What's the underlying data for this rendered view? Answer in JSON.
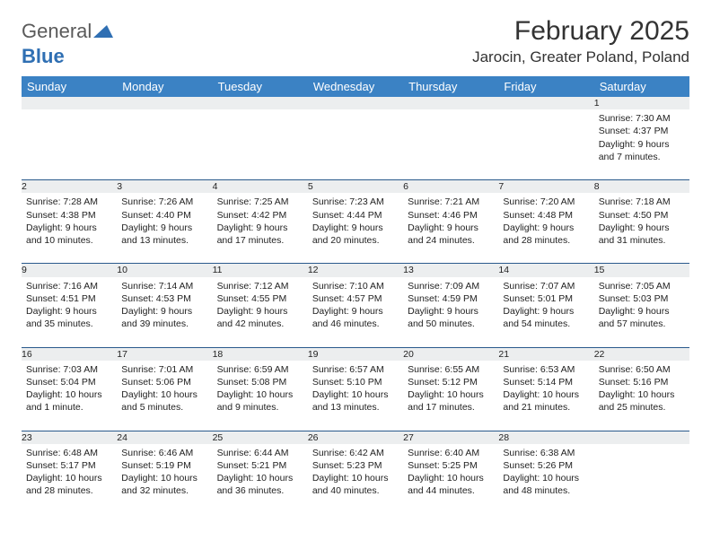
{
  "brand": {
    "name_a": "General",
    "name_b": "Blue"
  },
  "title": "February 2025",
  "location": "Jarocin, Greater Poland, Poland",
  "colors": {
    "header_bg": "#3b82c4",
    "header_text": "#ffffff",
    "rule": "#2a5a8c",
    "daynum_bg": "#eceeef",
    "brand_gray": "#5a5a5a",
    "brand_blue": "#2f6fb3"
  },
  "weekdays": [
    "Sunday",
    "Monday",
    "Tuesday",
    "Wednesday",
    "Thursday",
    "Friday",
    "Saturday"
  ],
  "weeks": [
    [
      null,
      null,
      null,
      null,
      null,
      null,
      {
        "n": "1",
        "sunrise": "7:30 AM",
        "sunset": "4:37 PM",
        "daylight": "9 hours and 7 minutes."
      }
    ],
    [
      {
        "n": "2",
        "sunrise": "7:28 AM",
        "sunset": "4:38 PM",
        "daylight": "9 hours and 10 minutes."
      },
      {
        "n": "3",
        "sunrise": "7:26 AM",
        "sunset": "4:40 PM",
        "daylight": "9 hours and 13 minutes."
      },
      {
        "n": "4",
        "sunrise": "7:25 AM",
        "sunset": "4:42 PM",
        "daylight": "9 hours and 17 minutes."
      },
      {
        "n": "5",
        "sunrise": "7:23 AM",
        "sunset": "4:44 PM",
        "daylight": "9 hours and 20 minutes."
      },
      {
        "n": "6",
        "sunrise": "7:21 AM",
        "sunset": "4:46 PM",
        "daylight": "9 hours and 24 minutes."
      },
      {
        "n": "7",
        "sunrise": "7:20 AM",
        "sunset": "4:48 PM",
        "daylight": "9 hours and 28 minutes."
      },
      {
        "n": "8",
        "sunrise": "7:18 AM",
        "sunset": "4:50 PM",
        "daylight": "9 hours and 31 minutes."
      }
    ],
    [
      {
        "n": "9",
        "sunrise": "7:16 AM",
        "sunset": "4:51 PM",
        "daylight": "9 hours and 35 minutes."
      },
      {
        "n": "10",
        "sunrise": "7:14 AM",
        "sunset": "4:53 PM",
        "daylight": "9 hours and 39 minutes."
      },
      {
        "n": "11",
        "sunrise": "7:12 AM",
        "sunset": "4:55 PM",
        "daylight": "9 hours and 42 minutes."
      },
      {
        "n": "12",
        "sunrise": "7:10 AM",
        "sunset": "4:57 PM",
        "daylight": "9 hours and 46 minutes."
      },
      {
        "n": "13",
        "sunrise": "7:09 AM",
        "sunset": "4:59 PM",
        "daylight": "9 hours and 50 minutes."
      },
      {
        "n": "14",
        "sunrise": "7:07 AM",
        "sunset": "5:01 PM",
        "daylight": "9 hours and 54 minutes."
      },
      {
        "n": "15",
        "sunrise": "7:05 AM",
        "sunset": "5:03 PM",
        "daylight": "9 hours and 57 minutes."
      }
    ],
    [
      {
        "n": "16",
        "sunrise": "7:03 AM",
        "sunset": "5:04 PM",
        "daylight": "10 hours and 1 minute."
      },
      {
        "n": "17",
        "sunrise": "7:01 AM",
        "sunset": "5:06 PM",
        "daylight": "10 hours and 5 minutes."
      },
      {
        "n": "18",
        "sunrise": "6:59 AM",
        "sunset": "5:08 PM",
        "daylight": "10 hours and 9 minutes."
      },
      {
        "n": "19",
        "sunrise": "6:57 AM",
        "sunset": "5:10 PM",
        "daylight": "10 hours and 13 minutes."
      },
      {
        "n": "20",
        "sunrise": "6:55 AM",
        "sunset": "5:12 PM",
        "daylight": "10 hours and 17 minutes."
      },
      {
        "n": "21",
        "sunrise": "6:53 AM",
        "sunset": "5:14 PM",
        "daylight": "10 hours and 21 minutes."
      },
      {
        "n": "22",
        "sunrise": "6:50 AM",
        "sunset": "5:16 PM",
        "daylight": "10 hours and 25 minutes."
      }
    ],
    [
      {
        "n": "23",
        "sunrise": "6:48 AM",
        "sunset": "5:17 PM",
        "daylight": "10 hours and 28 minutes."
      },
      {
        "n": "24",
        "sunrise": "6:46 AM",
        "sunset": "5:19 PM",
        "daylight": "10 hours and 32 minutes."
      },
      {
        "n": "25",
        "sunrise": "6:44 AM",
        "sunset": "5:21 PM",
        "daylight": "10 hours and 36 minutes."
      },
      {
        "n": "26",
        "sunrise": "6:42 AM",
        "sunset": "5:23 PM",
        "daylight": "10 hours and 40 minutes."
      },
      {
        "n": "27",
        "sunrise": "6:40 AM",
        "sunset": "5:25 PM",
        "daylight": "10 hours and 44 minutes."
      },
      {
        "n": "28",
        "sunrise": "6:38 AM",
        "sunset": "5:26 PM",
        "daylight": "10 hours and 48 minutes."
      },
      null
    ]
  ],
  "labels": {
    "sunrise": "Sunrise:",
    "sunset": "Sunset:",
    "daylight": "Daylight:"
  }
}
